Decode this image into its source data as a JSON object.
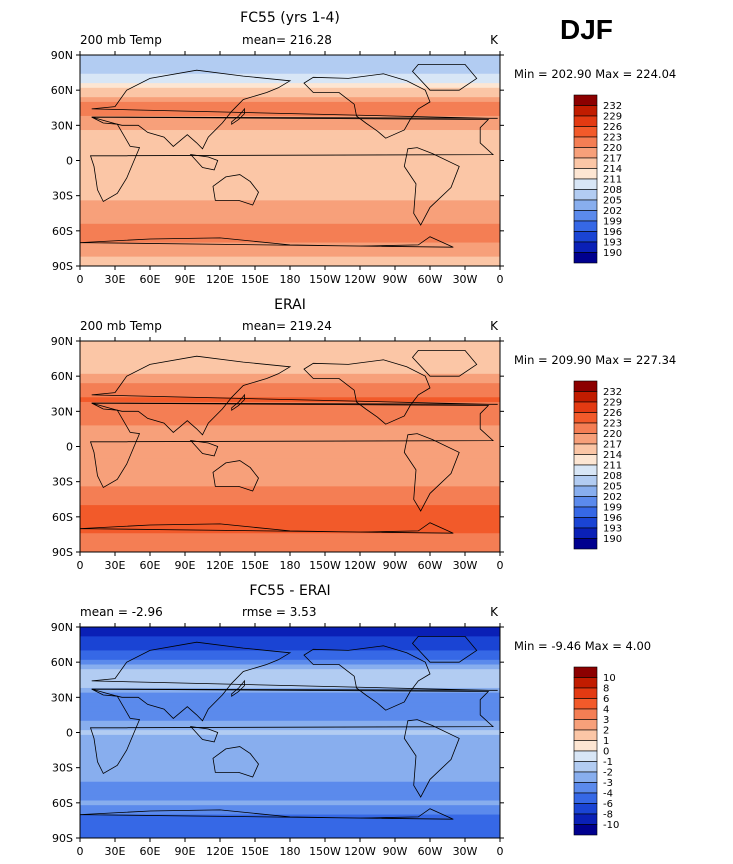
{
  "figure": {
    "season": "DJF"
  },
  "chart_data": [
    {
      "type": "heatmap",
      "title": "FC55 (yrs 1-4)",
      "left_label": "200 mb Temp",
      "center_label": "mean= 216.28",
      "right_label": "K",
      "stats": "Min = 202.90 Max = 224.04",
      "min": 202.9,
      "max": 224.04,
      "mean": 216.28,
      "lon_ticks": [
        "0",
        "30E",
        "60E",
        "90E",
        "120E",
        "150E",
        "180",
        "150W",
        "120W",
        "90W",
        "60W",
        "30W",
        "0"
      ],
      "lat_ticks": [
        "90N",
        "60N",
        "30N",
        "0",
        "30S",
        "60S",
        "90S"
      ],
      "colorbar": {
        "levels": [
          "232",
          "229",
          "226",
          "223",
          "220",
          "217",
          "214",
          "211",
          "208",
          "205",
          "202",
          "199",
          "196",
          "193",
          "190"
        ],
        "colors": [
          "#8c0000",
          "#c11c00",
          "#e33a12",
          "#f25a2a",
          "#f47e54",
          "#f7a07a",
          "#fbc6a6",
          "#fde6d3",
          "#d8e6f6",
          "#b2ccf2",
          "#88aeee",
          "#5b8aec",
          "#3668e6",
          "#1a44d4",
          "#0a20b6",
          "#00008e"
        ]
      },
      "zonal_profile": [
        {
          "lat": 90,
          "v": 207
        },
        {
          "lat": 80,
          "v": 207
        },
        {
          "lat": 70,
          "v": 209
        },
        {
          "lat": 60,
          "v": 214
        },
        {
          "lat": 50,
          "v": 220
        },
        {
          "lat": 40,
          "v": 221
        },
        {
          "lat": 30,
          "v": 218
        },
        {
          "lat": 20,
          "v": 216
        },
        {
          "lat": 10,
          "v": 216
        },
        {
          "lat": 0,
          "v": 216
        },
        {
          "lat": -10,
          "v": 215
        },
        {
          "lat": -20,
          "v": 215
        },
        {
          "lat": -30,
          "v": 216
        },
        {
          "lat": -40,
          "v": 218
        },
        {
          "lat": -50,
          "v": 219
        },
        {
          "lat": -60,
          "v": 222
        },
        {
          "lat": -70,
          "v": 220
        },
        {
          "lat": -80,
          "v": 217
        },
        {
          "lat": -90,
          "v": 216
        }
      ]
    },
    {
      "type": "heatmap",
      "title": "ERAI",
      "left_label": "200 mb Temp",
      "center_label": "mean= 219.24",
      "right_label": "K",
      "stats": "Min = 209.90 Max = 227.34",
      "min": 209.9,
      "max": 227.34,
      "mean": 219.24,
      "lon_ticks": [
        "0",
        "30E",
        "60E",
        "90E",
        "120E",
        "150E",
        "180",
        "150W",
        "120W",
        "90W",
        "60W",
        "30W",
        "0"
      ],
      "lat_ticks": [
        "90N",
        "60N",
        "30N",
        "0",
        "30S",
        "60S",
        "90S"
      ],
      "colorbar": {
        "levels": [
          "232",
          "229",
          "226",
          "223",
          "220",
          "217",
          "214",
          "211",
          "208",
          "205",
          "202",
          "199",
          "196",
          "193",
          "190"
        ],
        "colors": [
          "#8c0000",
          "#c11c00",
          "#e33a12",
          "#f25a2a",
          "#f47e54",
          "#f7a07a",
          "#fbc6a6",
          "#fde6d3",
          "#d8e6f6",
          "#b2ccf2",
          "#88aeee",
          "#5b8aec",
          "#3668e6",
          "#1a44d4",
          "#0a20b6",
          "#00008e"
        ]
      },
      "zonal_profile": [
        {
          "lat": 90,
          "v": 216
        },
        {
          "lat": 80,
          "v": 215
        },
        {
          "lat": 70,
          "v": 215
        },
        {
          "lat": 60,
          "v": 218
        },
        {
          "lat": 50,
          "v": 222
        },
        {
          "lat": 40,
          "v": 223
        },
        {
          "lat": 30,
          "v": 222
        },
        {
          "lat": 20,
          "v": 220
        },
        {
          "lat": 10,
          "v": 219
        },
        {
          "lat": 0,
          "v": 218
        },
        {
          "lat": -10,
          "v": 218
        },
        {
          "lat": -20,
          "v": 218
        },
        {
          "lat": -30,
          "v": 219
        },
        {
          "lat": -40,
          "v": 221
        },
        {
          "lat": -50,
          "v": 223
        },
        {
          "lat": -60,
          "v": 225
        },
        {
          "lat": -70,
          "v": 224
        },
        {
          "lat": -80,
          "v": 222
        },
        {
          "lat": -90,
          "v": 222
        }
      ]
    },
    {
      "type": "heatmap",
      "title": "FC55 - ERAI",
      "left_label": "mean =   -2.96",
      "center_label": "rmse =    3.53",
      "right_label": "K",
      "stats": "Min =  -9.46 Max =   4.00",
      "min": -9.46,
      "max": 4.0,
      "mean": -2.96,
      "rmse": 3.53,
      "lon_ticks": [
        "0",
        "30E",
        "60E",
        "90E",
        "120E",
        "150E",
        "180",
        "150W",
        "120W",
        "90W",
        "60W",
        "30W",
        "0"
      ],
      "lat_ticks": [
        "90N",
        "60N",
        "30N",
        "0",
        "30S",
        "60S",
        "90S"
      ],
      "colorbar": {
        "levels": [
          "10",
          "8",
          "6",
          "4",
          "3",
          "2",
          "1",
          "0",
          "-1",
          "-2",
          "-3",
          "-4",
          "-6",
          "-8",
          "-10"
        ],
        "colors": [
          "#8c0000",
          "#c11c00",
          "#e33a12",
          "#f25a2a",
          "#f47e54",
          "#f7a07a",
          "#fbc6a6",
          "#fde6d3",
          "#d8e6f6",
          "#b2ccf2",
          "#88aeee",
          "#5b8aec",
          "#3668e6",
          "#1a44d4",
          "#0a20b6",
          "#00008e"
        ]
      },
      "zonal_profile": [
        {
          "lat": 90,
          "v": -9
        },
        {
          "lat": 80,
          "v": -8
        },
        {
          "lat": 70,
          "v": -6
        },
        {
          "lat": 60,
          "v": -4
        },
        {
          "lat": 50,
          "v": -1
        },
        {
          "lat": 40,
          "v": -2
        },
        {
          "lat": 30,
          "v": -4
        },
        {
          "lat": 20,
          "v": -4
        },
        {
          "lat": 10,
          "v": -3
        },
        {
          "lat": 0,
          "v": -2
        },
        {
          "lat": -10,
          "v": -3
        },
        {
          "lat": -20,
          "v": -3
        },
        {
          "lat": -30,
          "v": -3
        },
        {
          "lat": -40,
          "v": -3
        },
        {
          "lat": -50,
          "v": -4
        },
        {
          "lat": -60,
          "v": -3
        },
        {
          "lat": -70,
          "v": -4
        },
        {
          "lat": -80,
          "v": -5
        },
        {
          "lat": -90,
          "v": -6
        }
      ]
    }
  ]
}
